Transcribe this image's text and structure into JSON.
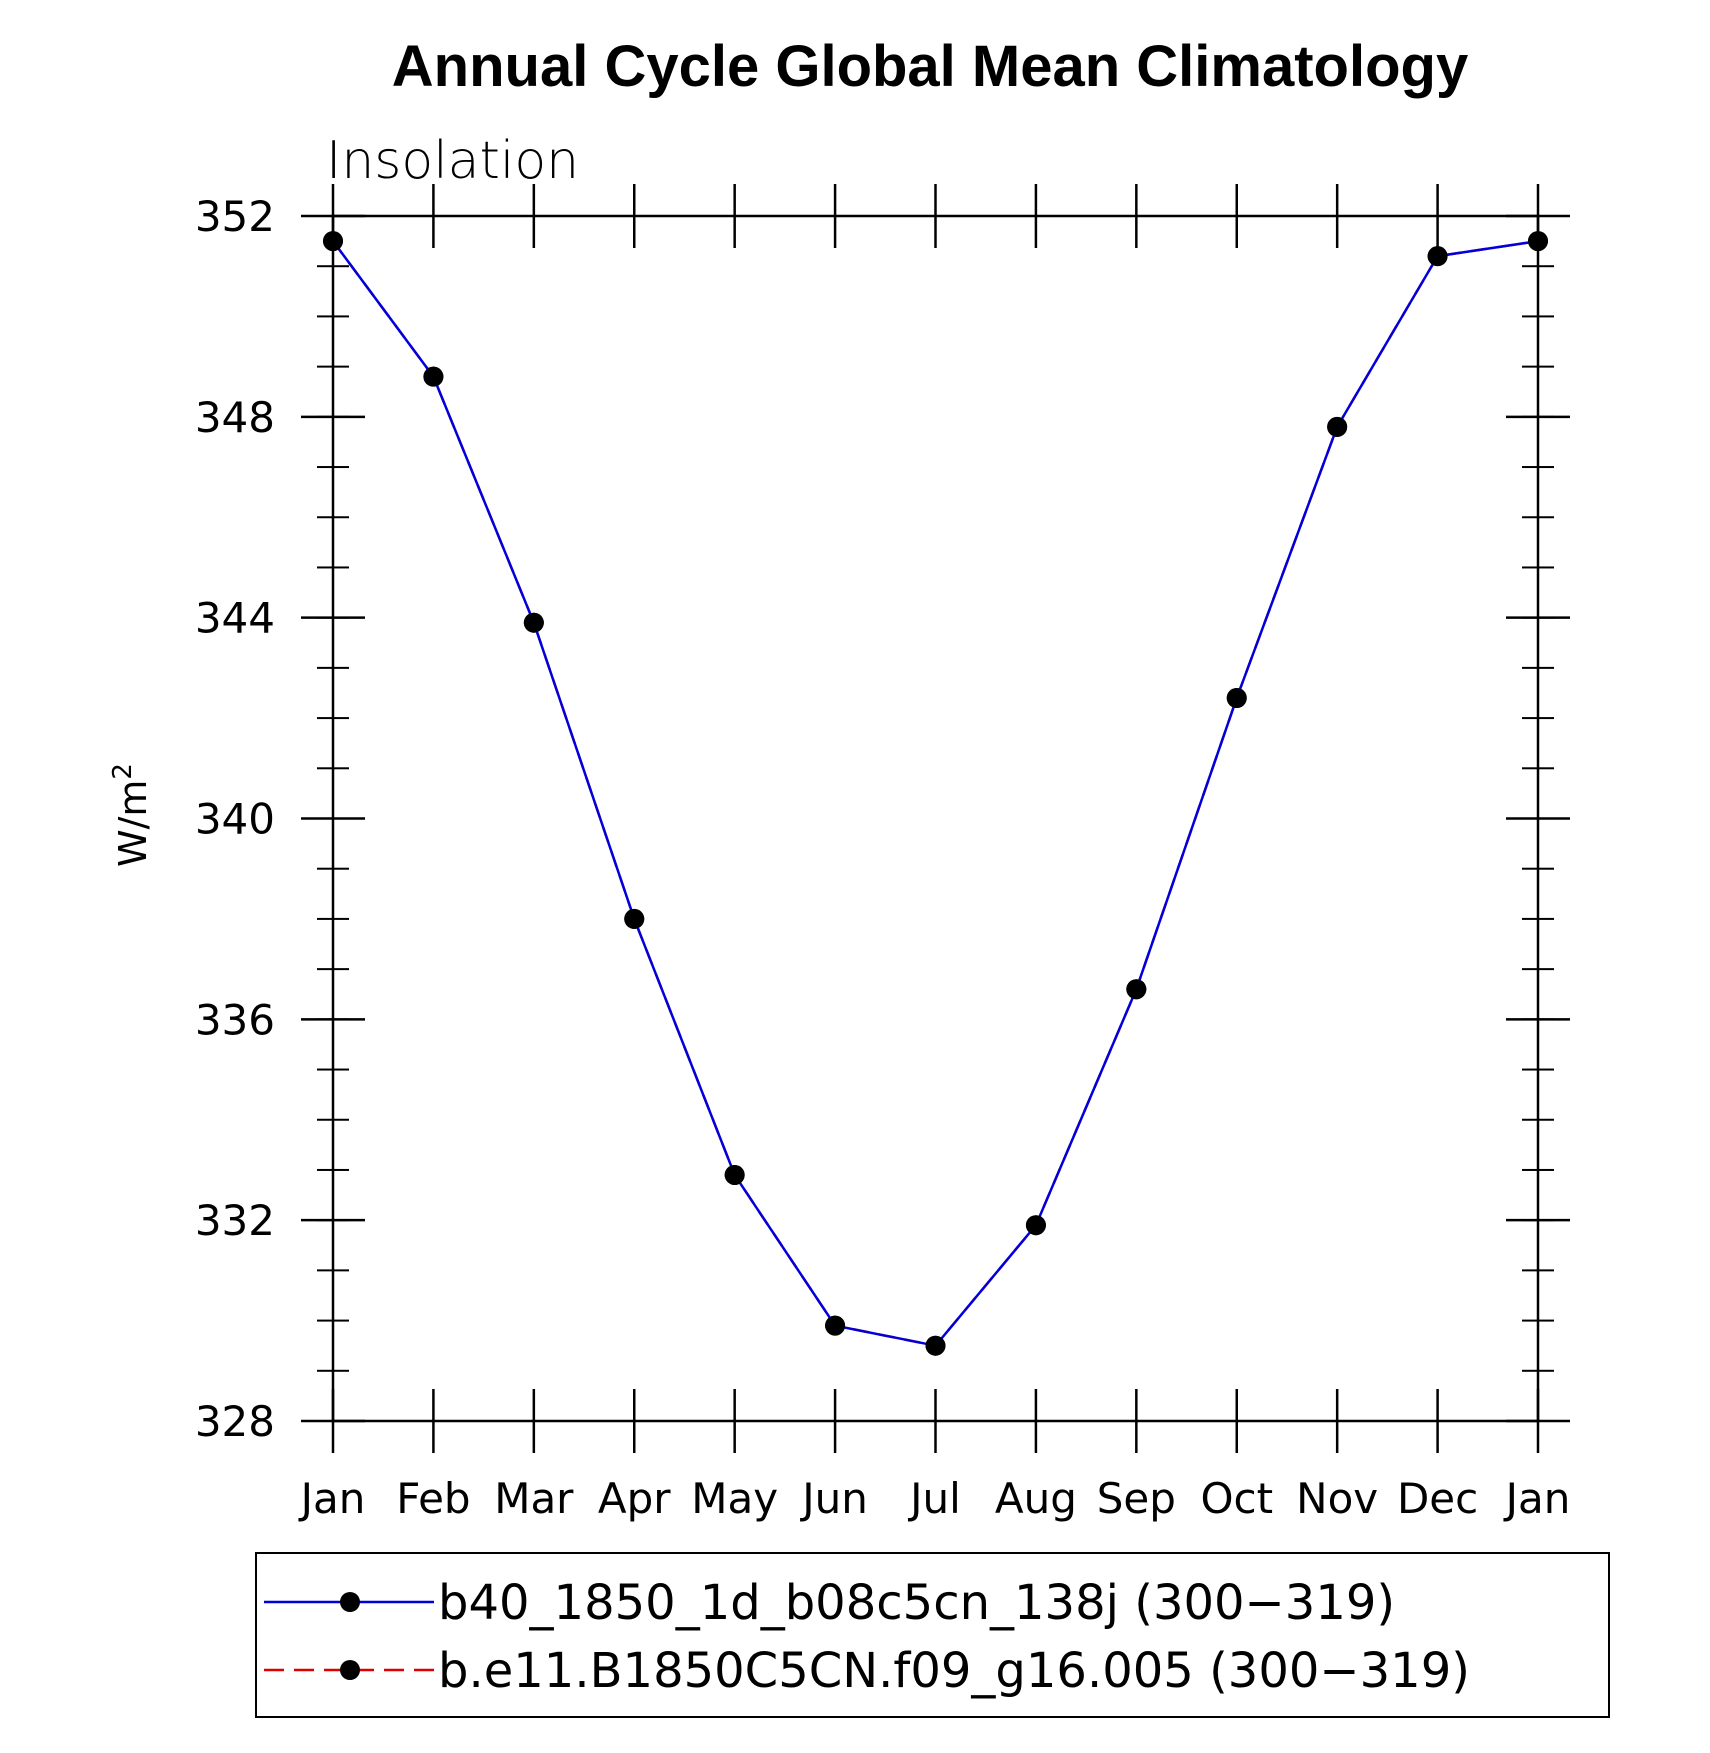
{
  "chart_data": {
    "type": "line",
    "title": "Annual Cycle Global Mean Climatology",
    "subtitle": "Insolation",
    "ylabel": "W/m",
    "ylabel_superscript": "2",
    "xlabel": "",
    "categories": [
      "Jan",
      "Feb",
      "Mar",
      "Apr",
      "May",
      "Jun",
      "Jul",
      "Aug",
      "Sep",
      "Oct",
      "Nov",
      "Dec",
      "Jan"
    ],
    "ylim": [
      328,
      352
    ],
    "yticks": [
      328,
      332,
      336,
      340,
      344,
      348,
      352
    ],
    "y_minor_step": 1,
    "grid": false,
    "series": [
      {
        "name": "b40_1850_1d_b08c5cn_138j (300−319)",
        "color": "#0000dd",
        "line_style": "solid",
        "marker": "filled-circle",
        "values": [
          351.5,
          348.8,
          343.9,
          338.0,
          332.9,
          329.9,
          329.5,
          331.9,
          336.6,
          342.4,
          347.8,
          351.2,
          351.5
        ]
      },
      {
        "name": "b.e11.B1850C5CN.f09_g16.005 (300−319)",
        "color": "#dd0000",
        "line_style": "dashed",
        "marker": "filled-circle",
        "values": [
          351.5,
          348.8,
          343.9,
          338.0,
          332.9,
          329.9,
          329.5,
          331.9,
          336.6,
          342.4,
          347.8,
          351.2,
          351.5
        ]
      }
    ],
    "legend_position": "bottom"
  }
}
